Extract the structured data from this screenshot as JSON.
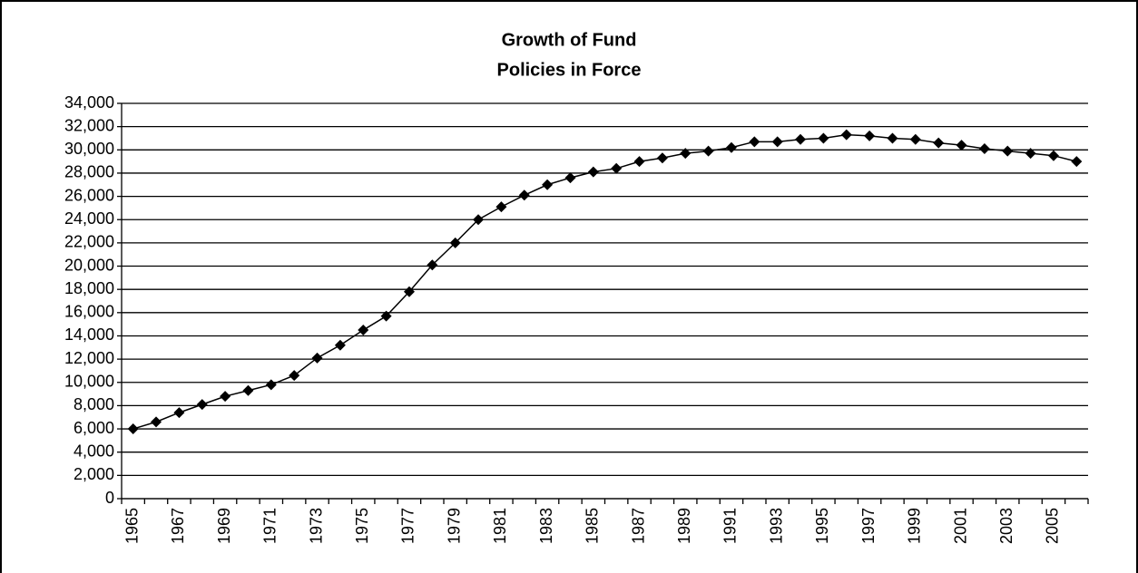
{
  "chart_data": {
    "type": "line",
    "title": [
      "Growth of Fund",
      "Policies in Force"
    ],
    "categories": [
      "1965",
      null,
      "1967",
      null,
      "1969",
      null,
      "1971",
      null,
      "1973",
      null,
      "1975",
      null,
      "1977",
      null,
      "1979",
      null,
      "1981",
      null,
      "1983",
      null,
      "1985",
      null,
      "1987",
      null,
      "1989",
      null,
      "1991",
      null,
      "1993",
      null,
      "1995",
      null,
      "1997",
      null,
      "1999",
      null,
      "2001",
      null,
      "2003",
      null,
      "2005",
      null
    ],
    "values": [
      6000,
      6600,
      7400,
      8100,
      8800,
      9300,
      9800,
      10600,
      12100,
      13200,
      14500,
      15700,
      17800,
      20100,
      22000,
      24000,
      25100,
      26100,
      27000,
      27600,
      28100,
      28400,
      29000,
      29300,
      29700,
      29900,
      30200,
      30700,
      30700,
      30900,
      31000,
      31300,
      31200,
      31000,
      30900,
      30600,
      30400,
      30100,
      29900,
      29700,
      29500,
      29000
    ],
    "color": "#000000",
    "ylim": [
      0,
      34000
    ],
    "yticks": [
      0,
      {
        "value": 2000,
        "label": "2,000"
      },
      {
        "value": 4000,
        "label": "4,000"
      },
      {
        "value": 6000,
        "label": "6,000"
      },
      {
        "value": 8000,
        "label": "8,000"
      },
      {
        "value": 10000,
        "label": "10,000"
      },
      {
        "value": 12000,
        "label": "12,000"
      },
      {
        "value": 14000,
        "label": "14,000"
      },
      {
        "value": 16000,
        "label": "16,000"
      },
      {
        "value": 18000,
        "label": "18,000"
      },
      {
        "value": 20000,
        "label": "20,000"
      },
      {
        "value": 22000,
        "label": "22,000"
      },
      {
        "value": 24000,
        "label": "24,000"
      },
      {
        "value": 26000,
        "label": "26,000"
      },
      {
        "value": 28000,
        "label": "28,000"
      },
      {
        "value": 30000,
        "label": "30,000"
      },
      {
        "value": 32000,
        "label": "32,000"
      },
      {
        "value": 34000,
        "label": "34,000"
      }
    ],
    "grid": true
  }
}
